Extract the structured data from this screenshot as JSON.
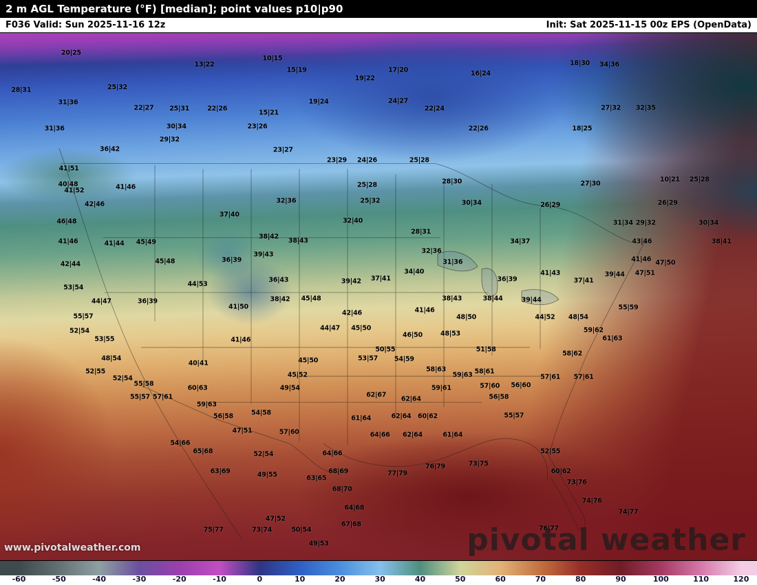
{
  "header": {
    "title": "2 m AGL Temperature (°F) [median]; point values p10|p90",
    "forecast": "F036 Valid: Sun 2025-11-16 12z",
    "init": "Init: Sat 2025-11-15 00z EPS (OpenData)"
  },
  "watermarks": {
    "url": "www.pivotalweather.com",
    "brand": "pivotal weather"
  },
  "colors": {
    "titlebar_bg": "#000000",
    "titlebar_text": "#ffffff",
    "subbar_bg": "#ffffff",
    "subbar_text": "#000000"
  },
  "colorbar": {
    "ticks": [
      "-60",
      "-50",
      "-40",
      "-30",
      "-20",
      "-10",
      "0",
      "10",
      "20",
      "30",
      "40",
      "50",
      "60",
      "70",
      "80",
      "90",
      "100",
      "110",
      "120"
    ],
    "colors": [
      "#3f4a4c",
      "#637173",
      "#8fa0a2",
      "#6b4f9e",
      "#9b3fae",
      "#c24ec2",
      "#2f3584",
      "#2f5fc4",
      "#4a8ede",
      "#85c0ea",
      "#4f8f7f",
      "#cfd49c",
      "#e2b276",
      "#c2703f",
      "#962e28",
      "#701c26",
      "#a43a62",
      "#d678aa",
      "#f4cce4"
    ]
  },
  "map": {
    "points": [
      {
        "v": "20|25",
        "x": 9.4,
        "y": 3.8
      },
      {
        "v": "13|22",
        "x": 27.0,
        "y": 6.0
      },
      {
        "v": "10|15",
        "x": 36.0,
        "y": 4.8
      },
      {
        "v": "15|19",
        "x": 39.2,
        "y": 7.0
      },
      {
        "v": "17|20",
        "x": 52.6,
        "y": 7.0
      },
      {
        "v": "19|22",
        "x": 48.2,
        "y": 8.6
      },
      {
        "v": "16|24",
        "x": 63.5,
        "y": 7.7
      },
      {
        "v": "18|30",
        "x": 76.6,
        "y": 5.8
      },
      {
        "v": "34|36",
        "x": 80.5,
        "y": 6.0
      },
      {
        "v": "28|31",
        "x": 2.8,
        "y": 10.9
      },
      {
        "v": "25|32",
        "x": 15.5,
        "y": 10.3
      },
      {
        "v": "24|27",
        "x": 52.6,
        "y": 12.9
      },
      {
        "v": "19|24",
        "x": 42.1,
        "y": 13.1
      },
      {
        "v": "31|36",
        "x": 9.0,
        "y": 13.2
      },
      {
        "v": "22|27",
        "x": 19.0,
        "y": 14.2
      },
      {
        "v": "25|31",
        "x": 23.7,
        "y": 14.3
      },
      {
        "v": "22|26",
        "x": 28.7,
        "y": 14.4
      },
      {
        "v": "15|21",
        "x": 35.5,
        "y": 15.2
      },
      {
        "v": "22|24",
        "x": 57.4,
        "y": 14.4
      },
      {
        "v": "27|32",
        "x": 80.7,
        "y": 14.2
      },
      {
        "v": "32|35",
        "x": 85.3,
        "y": 14.2
      },
      {
        "v": "31|36",
        "x": 7.2,
        "y": 18.2
      },
      {
        "v": "30|34",
        "x": 23.3,
        "y": 17.8
      },
      {
        "v": "23|26",
        "x": 34.0,
        "y": 17.8
      },
      {
        "v": "22|26",
        "x": 63.2,
        "y": 18.2
      },
      {
        "v": "18|25",
        "x": 76.9,
        "y": 18.1
      },
      {
        "v": "36|42",
        "x": 14.5,
        "y": 22.1
      },
      {
        "v": "29|32",
        "x": 22.4,
        "y": 20.3
      },
      {
        "v": "23|27",
        "x": 37.4,
        "y": 22.2
      },
      {
        "v": "23|29",
        "x": 44.5,
        "y": 24.2
      },
      {
        "v": "24|26",
        "x": 48.5,
        "y": 24.2
      },
      {
        "v": "25|28",
        "x": 55.4,
        "y": 24.2
      },
      {
        "v": "27|30",
        "x": 78.0,
        "y": 28.6
      },
      {
        "v": "10|21",
        "x": 88.5,
        "y": 27.8
      },
      {
        "v": "25|28",
        "x": 92.4,
        "y": 27.8
      },
      {
        "v": "26|29",
        "x": 88.2,
        "y": 32.3
      },
      {
        "v": "31|34",
        "x": 82.3,
        "y": 36.0
      },
      {
        "v": "29|32",
        "x": 85.3,
        "y": 36.0
      },
      {
        "v": "30|34",
        "x": 93.6,
        "y": 36.0
      },
      {
        "v": "38|41",
        "x": 95.3,
        "y": 39.6
      },
      {
        "v": "43|46",
        "x": 84.8,
        "y": 39.6
      },
      {
        "v": "41|46",
        "x": 84.7,
        "y": 43.0
      },
      {
        "v": "47|50",
        "x": 87.9,
        "y": 43.6
      },
      {
        "v": "47|51",
        "x": 85.2,
        "y": 45.6
      },
      {
        "v": "39|44",
        "x": 81.2,
        "y": 45.8
      },
      {
        "v": "41|51",
        "x": 9.1,
        "y": 25.7
      },
      {
        "v": "40|48",
        "x": 9.0,
        "y": 28.7
      },
      {
        "v": "41|52",
        "x": 9.8,
        "y": 29.9
      },
      {
        "v": "41|46",
        "x": 16.6,
        "y": 29.2
      },
      {
        "v": "42|46",
        "x": 12.5,
        "y": 32.5
      },
      {
        "v": "46|48",
        "x": 8.8,
        "y": 35.8
      },
      {
        "v": "41|46",
        "x": 9.0,
        "y": 39.5
      },
      {
        "v": "41|44",
        "x": 15.1,
        "y": 40.0
      },
      {
        "v": "45|49",
        "x": 19.3,
        "y": 39.7
      },
      {
        "v": "42|44",
        "x": 9.3,
        "y": 43.8
      },
      {
        "v": "45|48",
        "x": 21.8,
        "y": 43.4
      },
      {
        "v": "53|54",
        "x": 9.7,
        "y": 48.3
      },
      {
        "v": "44|47",
        "x": 13.4,
        "y": 50.9
      },
      {
        "v": "36|39",
        "x": 19.5,
        "y": 50.9
      },
      {
        "v": "55|57",
        "x": 11.0,
        "y": 53.8
      },
      {
        "v": "52|54",
        "x": 10.5,
        "y": 56.5
      },
      {
        "v": "53|55",
        "x": 13.8,
        "y": 58.1
      },
      {
        "v": "48|54",
        "x": 14.7,
        "y": 61.8
      },
      {
        "v": "52|55",
        "x": 12.6,
        "y": 64.2
      },
      {
        "v": "52|54",
        "x": 16.2,
        "y": 65.5
      },
      {
        "v": "55|58",
        "x": 19.0,
        "y": 66.6
      },
      {
        "v": "55|57",
        "x": 18.5,
        "y": 69.0
      },
      {
        "v": "57|61",
        "x": 21.5,
        "y": 69.0
      },
      {
        "v": "44|53",
        "x": 26.1,
        "y": 47.7
      },
      {
        "v": "37|40",
        "x": 30.3,
        "y": 34.4
      },
      {
        "v": "38|42",
        "x": 35.5,
        "y": 38.7
      },
      {
        "v": "38|43",
        "x": 39.4,
        "y": 39.4
      },
      {
        "v": "36|39",
        "x": 30.6,
        "y": 43.1
      },
      {
        "v": "39|43",
        "x": 34.8,
        "y": 42.1
      },
      {
        "v": "36|43",
        "x": 36.8,
        "y": 46.9
      },
      {
        "v": "38|42",
        "x": 37.0,
        "y": 50.5
      },
      {
        "v": "45|48",
        "x": 41.1,
        "y": 50.4
      },
      {
        "v": "41|50",
        "x": 31.5,
        "y": 51.9
      },
      {
        "v": "41|46",
        "x": 31.8,
        "y": 58.2
      },
      {
        "v": "40|41",
        "x": 26.2,
        "y": 62.7
      },
      {
        "v": "45|50",
        "x": 40.7,
        "y": 62.1
      },
      {
        "v": "45|52",
        "x": 39.3,
        "y": 64.9
      },
      {
        "v": "49|54",
        "x": 38.3,
        "y": 67.4
      },
      {
        "v": "32|36",
        "x": 37.8,
        "y": 31.8
      },
      {
        "v": "25|28",
        "x": 48.5,
        "y": 28.8
      },
      {
        "v": "25|32",
        "x": 48.9,
        "y": 31.8
      },
      {
        "v": "32|40",
        "x": 46.6,
        "y": 35.7
      },
      {
        "v": "28|31",
        "x": 55.6,
        "y": 37.7
      },
      {
        "v": "28|30",
        "x": 59.7,
        "y": 28.2
      },
      {
        "v": "30|34",
        "x": 62.3,
        "y": 32.2
      },
      {
        "v": "26|29",
        "x": 72.7,
        "y": 32.6
      },
      {
        "v": "34|37",
        "x": 68.7,
        "y": 39.6
      },
      {
        "v": "32|36",
        "x": 57.0,
        "y": 41.4
      },
      {
        "v": "31|36",
        "x": 59.8,
        "y": 43.5
      },
      {
        "v": "34|40",
        "x": 54.7,
        "y": 45.3
      },
      {
        "v": "39|42",
        "x": 46.4,
        "y": 47.1
      },
      {
        "v": "37|41",
        "x": 50.3,
        "y": 46.6
      },
      {
        "v": "36|39",
        "x": 67.0,
        "y": 46.8
      },
      {
        "v": "38|43",
        "x": 59.7,
        "y": 50.4
      },
      {
        "v": "38|44",
        "x": 65.1,
        "y": 50.4
      },
      {
        "v": "39|44",
        "x": 70.2,
        "y": 50.6
      },
      {
        "v": "41|43",
        "x": 72.7,
        "y": 45.6
      },
      {
        "v": "37|41",
        "x": 77.1,
        "y": 47.0
      },
      {
        "v": "41|46",
        "x": 56.1,
        "y": 52.6
      },
      {
        "v": "42|46",
        "x": 46.5,
        "y": 53.1
      },
      {
        "v": "44|47",
        "x": 43.6,
        "y": 56.0
      },
      {
        "v": "45|50",
        "x": 47.7,
        "y": 56.0
      },
      {
        "v": "46|50",
        "x": 54.5,
        "y": 57.3
      },
      {
        "v": "48|53",
        "x": 59.5,
        "y": 57.1
      },
      {
        "v": "48|50",
        "x": 61.6,
        "y": 53.9
      },
      {
        "v": "44|52",
        "x": 72.0,
        "y": 53.9
      },
      {
        "v": "48|54",
        "x": 76.4,
        "y": 53.9
      },
      {
        "v": "59|62",
        "x": 78.4,
        "y": 56.4
      },
      {
        "v": "61|63",
        "x": 80.9,
        "y": 57.9
      },
      {
        "v": "55|59",
        "x": 83.0,
        "y": 52.1
      },
      {
        "v": "58|62",
        "x": 75.6,
        "y": 60.9
      },
      {
        "v": "57|61",
        "x": 72.7,
        "y": 65.3
      },
      {
        "v": "57|61",
        "x": 77.1,
        "y": 65.3
      },
      {
        "v": "51|58",
        "x": 64.2,
        "y": 60.1
      },
      {
        "v": "58|61",
        "x": 64.0,
        "y": 64.2
      },
      {
        "v": "57|60",
        "x": 64.7,
        "y": 67.0
      },
      {
        "v": "59|61",
        "x": 58.3,
        "y": 67.4
      },
      {
        "v": "56|58",
        "x": 65.9,
        "y": 69.0
      },
      {
        "v": "56|60",
        "x": 68.8,
        "y": 66.9
      },
      {
        "v": "53|57",
        "x": 48.6,
        "y": 61.7
      },
      {
        "v": "54|59",
        "x": 53.4,
        "y": 61.9
      },
      {
        "v": "58|63",
        "x": 57.6,
        "y": 63.9
      },
      {
        "v": "59|63",
        "x": 61.1,
        "y": 64.9
      },
      {
        "v": "50|55",
        "x": 50.9,
        "y": 60.0
      },
      {
        "v": "62|67",
        "x": 49.7,
        "y": 68.7
      },
      {
        "v": "62|64",
        "x": 54.3,
        "y": 69.4
      },
      {
        "v": "61|64",
        "x": 47.7,
        "y": 73.1
      },
      {
        "v": "62|64",
        "x": 53.0,
        "y": 72.7
      },
      {
        "v": "60|62",
        "x": 56.5,
        "y": 72.7
      },
      {
        "v": "64|66",
        "x": 50.2,
        "y": 76.2
      },
      {
        "v": "62|64",
        "x": 54.5,
        "y": 76.2
      },
      {
        "v": "61|64",
        "x": 59.8,
        "y": 76.2
      },
      {
        "v": "55|57",
        "x": 67.9,
        "y": 72.6
      },
      {
        "v": "59|63",
        "x": 27.3,
        "y": 70.5
      },
      {
        "v": "60|63",
        "x": 26.1,
        "y": 67.3
      },
      {
        "v": "56|58",
        "x": 29.5,
        "y": 72.7
      },
      {
        "v": "54|58",
        "x": 34.5,
        "y": 72.1
      },
      {
        "v": "47|51",
        "x": 32.0,
        "y": 75.5
      },
      {
        "v": "57|60",
        "x": 38.2,
        "y": 75.7
      },
      {
        "v": "52|54",
        "x": 34.8,
        "y": 79.9
      },
      {
        "v": "49|55",
        "x": 35.3,
        "y": 83.8
      },
      {
        "v": "54|66",
        "x": 23.8,
        "y": 77.8
      },
      {
        "v": "65|68",
        "x": 26.8,
        "y": 79.4
      },
      {
        "v": "63|69",
        "x": 29.1,
        "y": 83.2
      },
      {
        "v": "64|66",
        "x": 43.9,
        "y": 79.7
      },
      {
        "v": "63|65",
        "x": 41.8,
        "y": 84.4
      },
      {
        "v": "68|69",
        "x": 44.7,
        "y": 83.1
      },
      {
        "v": "68|70",
        "x": 45.2,
        "y": 86.5
      },
      {
        "v": "64|68",
        "x": 46.8,
        "y": 90.1
      },
      {
        "v": "67|68",
        "x": 46.4,
        "y": 93.2
      },
      {
        "v": "47|52",
        "x": 36.4,
        "y": 92.2
      },
      {
        "v": "50|54",
        "x": 39.8,
        "y": 94.2
      },
      {
        "v": "49|53",
        "x": 42.1,
        "y": 96.9
      },
      {
        "v": "73|74",
        "x": 34.6,
        "y": 94.3
      },
      {
        "v": "75|77",
        "x": 28.2,
        "y": 94.2
      },
      {
        "v": "77|79",
        "x": 52.5,
        "y": 83.5
      },
      {
        "v": "76|79",
        "x": 57.5,
        "y": 82.2
      },
      {
        "v": "73|75",
        "x": 63.2,
        "y": 81.7
      },
      {
        "v": "52|55",
        "x": 72.7,
        "y": 79.4
      },
      {
        "v": "60|62",
        "x": 74.1,
        "y": 83.2
      },
      {
        "v": "73|76",
        "x": 76.2,
        "y": 85.2
      },
      {
        "v": "74|76",
        "x": 78.2,
        "y": 88.8
      },
      {
        "v": "74|77",
        "x": 83.0,
        "y": 90.8
      },
      {
        "v": "76|77",
        "x": 72.5,
        "y": 94.0
      }
    ]
  }
}
